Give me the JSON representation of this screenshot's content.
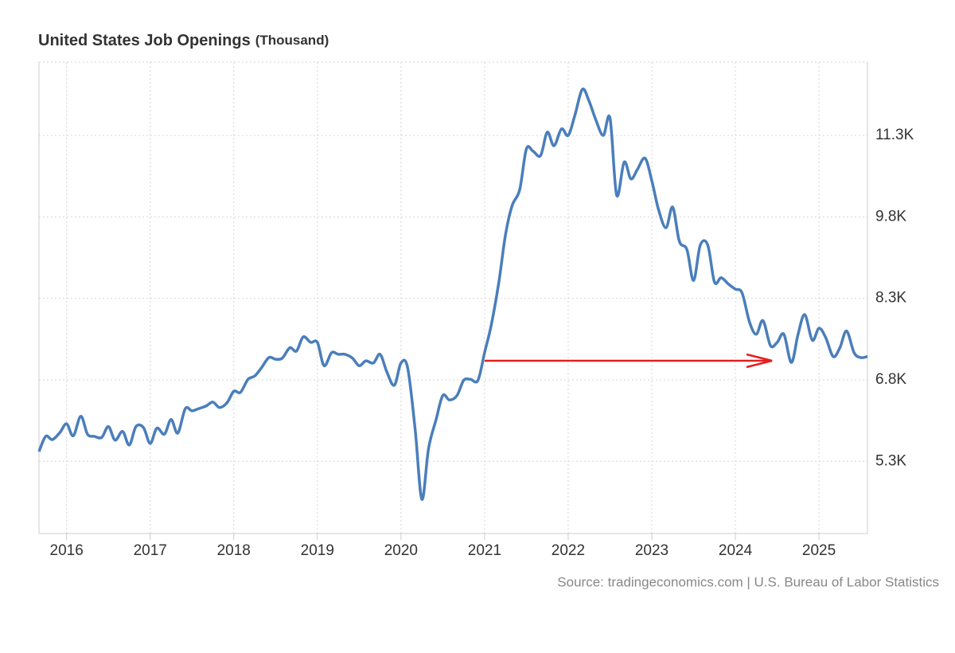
{
  "chart_data": {
    "type": "line",
    "title": "United States Job Openings",
    "subtitle": "(Thousand)",
    "source": "Source: tradingeconomics.com | U.S. Bureau of Labor Statistics",
    "x": [
      2015.67,
      2015.75,
      2015.83,
      2015.92,
      2016,
      2016.08,
      2016.17,
      2016.25,
      2016.33,
      2016.42,
      2016.5,
      2016.58,
      2016.67,
      2016.75,
      2016.83,
      2016.92,
      2017,
      2017.08,
      2017.17,
      2017.25,
      2017.33,
      2017.42,
      2017.5,
      2017.58,
      2017.67,
      2017.75,
      2017.83,
      2017.92,
      2018,
      2018.08,
      2018.17,
      2018.25,
      2018.33,
      2018.42,
      2018.5,
      2018.58,
      2018.67,
      2018.75,
      2018.83,
      2018.92,
      2019,
      2019.08,
      2019.17,
      2019.25,
      2019.33,
      2019.42,
      2019.5,
      2019.58,
      2019.67,
      2019.75,
      2019.83,
      2019.92,
      2020,
      2020.08,
      2020.17,
      2020.25,
      2020.33,
      2020.42,
      2020.5,
      2020.58,
      2020.67,
      2020.75,
      2020.83,
      2020.92,
      2021,
      2021.08,
      2021.17,
      2021.25,
      2021.33,
      2021.42,
      2021.5,
      2021.58,
      2021.67,
      2021.75,
      2021.83,
      2021.92,
      2022,
      2022.08,
      2022.17,
      2022.25,
      2022.33,
      2022.42,
      2022.5,
      2022.58,
      2022.67,
      2022.75,
      2022.83,
      2022.92,
      2023,
      2023.08,
      2023.17,
      2023.25,
      2023.33,
      2023.42,
      2023.5,
      2023.58,
      2023.67,
      2023.75,
      2023.83,
      2023.92,
      2024,
      2024.08,
      2024.17,
      2024.25,
      2024.33,
      2024.42,
      2024.5,
      2024.58,
      2024.67,
      2024.75,
      2024.83,
      2024.92,
      2025,
      2025.08,
      2025.17,
      2025.25,
      2025.33,
      2025.42,
      2025.5,
      2025.58
    ],
    "series": [
      {
        "name": "Job Openings",
        "color": "#4a7ebb",
        "values": [
          5480,
          5760,
          5700,
          5830,
          5990,
          5770,
          6130,
          5800,
          5760,
          5740,
          5940,
          5690,
          5850,
          5600,
          5940,
          5920,
          5630,
          5910,
          5800,
          6070,
          5820,
          6270,
          6230,
          6270,
          6320,
          6390,
          6290,
          6380,
          6590,
          6570,
          6810,
          6870,
          7020,
          7210,
          7180,
          7200,
          7390,
          7330,
          7590,
          7490,
          7490,
          7060,
          7300,
          7270,
          7270,
          7200,
          7060,
          7150,
          7110,
          7270,
          6950,
          6700,
          7110,
          7020,
          5880,
          4600,
          5540,
          6070,
          6510,
          6430,
          6510,
          6790,
          6810,
          6790,
          7300,
          7810,
          8590,
          9470,
          10010,
          10300,
          11050,
          11010,
          10930,
          11360,
          11110,
          11420,
          11300,
          11670,
          12150,
          11930,
          11590,
          11300,
          11620,
          10200,
          10810,
          10500,
          10680,
          10880,
          10470,
          9940,
          9600,
          9980,
          9350,
          9200,
          8630,
          9280,
          9280,
          8600,
          8680,
          8560,
          8470,
          8400,
          7860,
          7640,
          7890,
          7430,
          7490,
          7640,
          7120,
          7640,
          8000,
          7530,
          7750,
          7580,
          7230,
          7390,
          7700,
          7300,
          7210,
          7230
        ]
      }
    ],
    "xlim": [
      2015.67,
      2025.58
    ],
    "xticks": [
      2016,
      2017,
      2018,
      2019,
      2020,
      2021,
      2022,
      2023,
      2024,
      2025
    ],
    "ylim": [
      3970,
      12650
    ],
    "yticks": [
      {
        "value": 5300,
        "label": "5.3K"
      },
      {
        "value": 6800,
        "label": "6.8K"
      },
      {
        "value": 8300,
        "label": "8.3K"
      },
      {
        "value": 9800,
        "label": "9.8K"
      },
      {
        "value": 11300,
        "label": "11.3K"
      }
    ],
    "grid": true
  }
}
